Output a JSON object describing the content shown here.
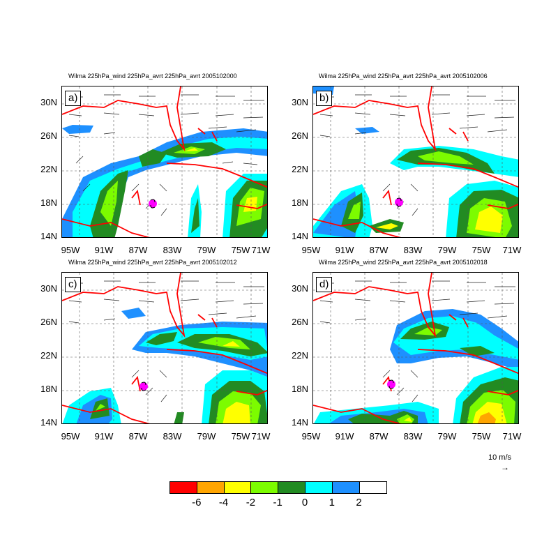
{
  "colorbar": {
    "colors": [
      "#ff0000",
      "#ffa500",
      "#ffff00",
      "#7cfc00",
      "#228b22",
      "#00ffff",
      "#1e90ff",
      "#ffffff"
    ],
    "labels": [
      "-6",
      "-4",
      "-2",
      "-1",
      "0",
      "1",
      "2"
    ]
  },
  "reference_vector": {
    "label": "10 m/s",
    "arrow": "→"
  },
  "lat_labels": [
    "30N",
    "26N",
    "22N",
    "18N",
    "14N"
  ],
  "lon_labels": [
    "95W",
    "91W",
    "87W",
    "83W",
    "79W",
    "75W",
    "71W"
  ],
  "panels": [
    {
      "label": "a)",
      "title": "Wilma 225hPa_wind 225hPa_avrt 225hPa_avrt 2005102000"
    },
    {
      "label": "b)",
      "title": "Wilma 225hPa_wind 225hPa_avrt 225hPa_avrt 2005102006"
    },
    {
      "label": "c)",
      "title": "Wilma 225hPa_wind 225hPa_avrt 225hPa_avrt 2005102012"
    },
    {
      "label": "d)",
      "title": "Wilma 225hPa_wind 225hPa_avrt 225hPa_avrt 2005102018"
    }
  ],
  "hurricane_marker": {
    "color": "#ff00ff"
  }
}
